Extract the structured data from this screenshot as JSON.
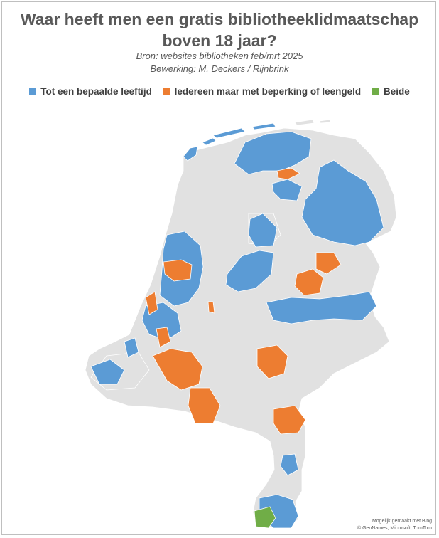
{
  "title_line1": "Waar heeft men een gratis bibliotheeklidmaatschap",
  "title_line2": "boven 18 jaar?",
  "source": "Bron: websites bibliotheken feb/mrt 2025",
  "editor": "Bewerking: M. Deckers / Rijnbrink",
  "legend": [
    {
      "label": "Tot een bepaalde leeftijd",
      "color": "#5b9bd5"
    },
    {
      "label": "Iedereen maar met beperking of leengeld",
      "color": "#ed7d31"
    },
    {
      "label": "Beide",
      "color": "#70ad47"
    }
  ],
  "colors": {
    "land": "#e1e1e1",
    "border": "#ffffff"
  },
  "credit_line1": "Mogelijk gemaakt met Bing",
  "credit_line2": "© GeoNames, Microsoft, TomTom"
}
